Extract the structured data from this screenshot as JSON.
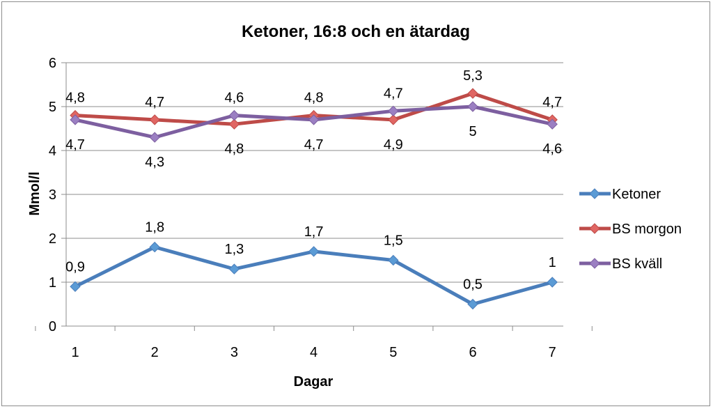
{
  "chart_data": {
    "type": "line",
    "title": "Ketoner, 16:8 och en ätardag",
    "xlabel": "Dagar",
    "ylabel": "Mmol/l",
    "categories": [
      "1",
      "2",
      "3",
      "4",
      "5",
      "6",
      "7"
    ],
    "ylim": [
      0,
      6
    ],
    "yticks": [
      "0",
      "1",
      "2",
      "3",
      "4",
      "5",
      "6"
    ],
    "grid": true,
    "legend_position": "right",
    "series": [
      {
        "name": "Ketoner",
        "color": "#4A7EBB",
        "marker_color": "#5B9BD5",
        "values": [
          0.9,
          1.8,
          1.3,
          1.7,
          1.5,
          0.5,
          1
        ],
        "labels": [
          "0,9",
          "1,8",
          "1,3",
          "1,7",
          "1,5",
          "0,5",
          "1"
        ]
      },
      {
        "name": "BS morgon",
        "color": "#BE4B48",
        "marker_color": "#E06663",
        "values": [
          4.8,
          4.7,
          4.6,
          4.8,
          4.7,
          5.3,
          4.7
        ],
        "labels": [
          "4,8",
          "4,7",
          "4,6",
          "4,8",
          "4,7",
          "5,3",
          "4,7"
        ]
      },
      {
        "name": "BS kväll",
        "color": "#7D5FA0",
        "marker_color": "#9B7FC2",
        "values": [
          4.7,
          4.3,
          4.8,
          4.7,
          4.9,
          5.0,
          4.6
        ],
        "labels": [
          "4,7",
          "4,3",
          "4,8",
          "4,7",
          "4,9",
          "5",
          "4,6"
        ]
      }
    ]
  }
}
